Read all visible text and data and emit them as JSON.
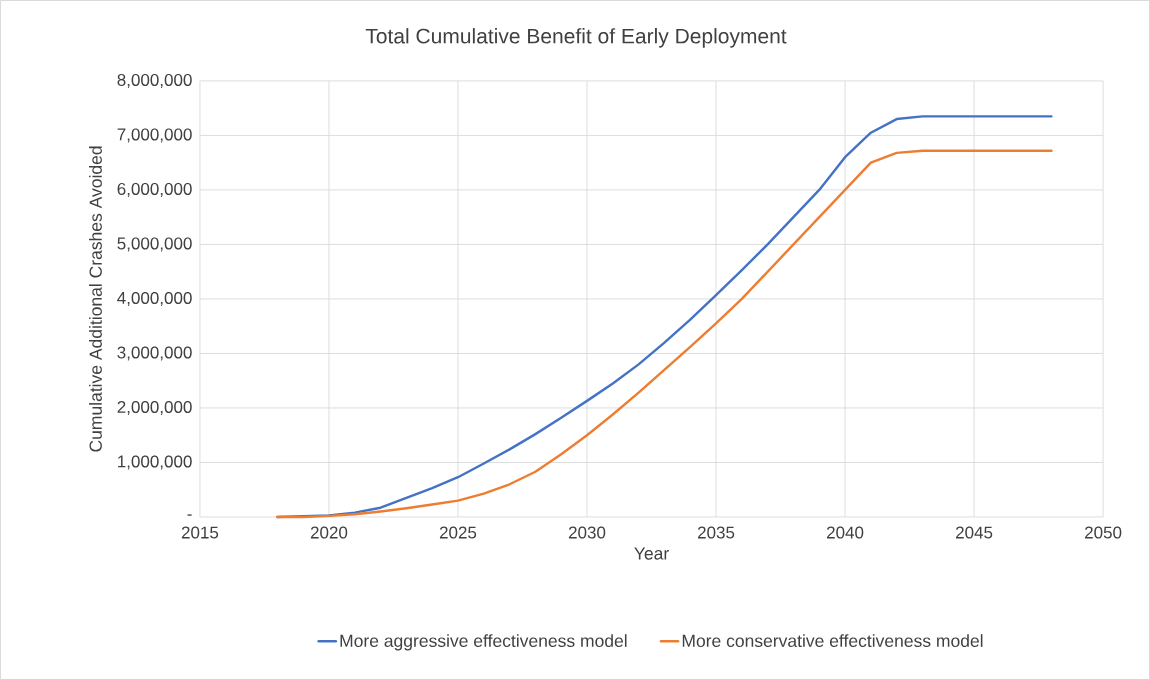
{
  "chart_data": {
    "type": "line",
    "title": "Total Cumulative Benefit of Early Deployment",
    "xlabel": "Year",
    "ylabel": "Cumulative Additional Crashes Avoided",
    "x": [
      2018,
      2019,
      2020,
      2021,
      2022,
      2023,
      2024,
      2025,
      2026,
      2027,
      2028,
      2029,
      2030,
      2031,
      2032,
      2033,
      2034,
      2035,
      2036,
      2037,
      2038,
      2039,
      2040,
      2041,
      2042,
      2043,
      2044,
      2045,
      2046,
      2047,
      2048
    ],
    "series": [
      {
        "name": "More aggressive effectiveness model",
        "color": "#4472c4",
        "values": [
          0,
          null,
          30000,
          80000,
          170000,
          350000,
          530000,
          730000,
          980000,
          1240000,
          1520000,
          1820000,
          2130000,
          2450000,
          2800000,
          3200000,
          3620000,
          4070000,
          4530000,
          5000000,
          5500000,
          6000000,
          6600000,
          7050000,
          7300000,
          7350000,
          7350000,
          7350000,
          7350000,
          7350000,
          7350000
        ]
      },
      {
        "name": "More conservative effectiveness model",
        "color": "#ed7d31",
        "values": [
          0,
          0,
          20000,
          50000,
          100000,
          160000,
          230000,
          300000,
          430000,
          600000,
          830000,
          1150000,
          1500000,
          1880000,
          2280000,
          2700000,
          3120000,
          3550000,
          4000000,
          4500000,
          5000000,
          5500000,
          6000000,
          6500000,
          6680000,
          6720000,
          6720000,
          6720000,
          6720000,
          6720000,
          6720000
        ]
      }
    ],
    "xlim": [
      2015,
      2050
    ],
    "xticks": [
      2015,
      2020,
      2025,
      2030,
      2035,
      2040,
      2045,
      2050
    ],
    "ylim": [
      0,
      8000000
    ],
    "yticks": [
      {
        "value": 0,
        "label": "-"
      },
      {
        "value": 1000000,
        "label": "1,000,000"
      },
      {
        "value": 2000000,
        "label": "2,000,000"
      },
      {
        "value": 3000000,
        "label": "3,000,000"
      },
      {
        "value": 4000000,
        "label": "4,000,000"
      },
      {
        "value": 5000000,
        "label": "5,000,000"
      },
      {
        "value": 6000000,
        "label": "6,000,000"
      },
      {
        "value": 7000000,
        "label": "7,000,000"
      },
      {
        "value": 8000000,
        "label": "8,000,000"
      }
    ],
    "grid": true,
    "legend": "bottom",
    "marker": "none",
    "line_style": "solid"
  }
}
